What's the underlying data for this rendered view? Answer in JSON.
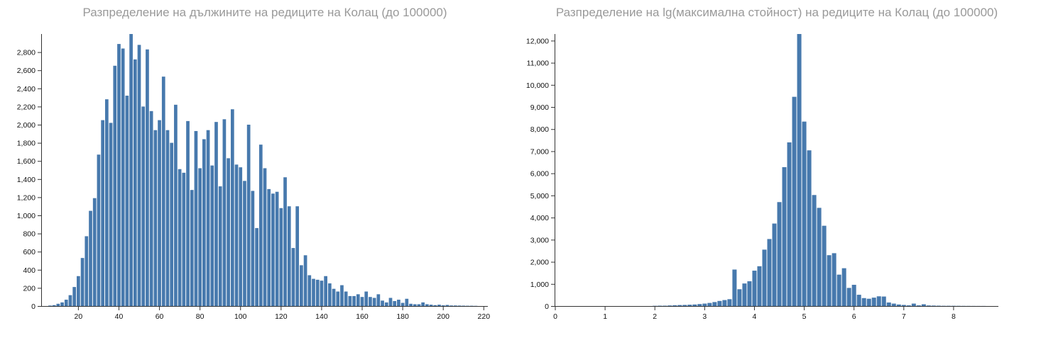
{
  "colors": {
    "bar": "#4779ad",
    "axis": "#333333",
    "title": "#999999"
  },
  "chart_data": [
    {
      "type": "bar",
      "title": "Разпределение на дължините на редиците на Колац (до 100000)",
      "xlabel": "",
      "ylabel": "",
      "xlim": [
        2,
        222
      ],
      "ylim": [
        0,
        3000
      ],
      "grid": false,
      "bin_width": 2,
      "x": [
        6,
        8,
        10,
        12,
        14,
        16,
        18,
        20,
        22,
        24,
        26,
        28,
        30,
        32,
        34,
        36,
        38,
        40,
        42,
        44,
        46,
        48,
        50,
        52,
        54,
        56,
        58,
        60,
        62,
        64,
        66,
        68,
        70,
        72,
        74,
        76,
        78,
        80,
        82,
        84,
        86,
        88,
        90,
        92,
        94,
        96,
        98,
        100,
        102,
        104,
        106,
        108,
        110,
        112,
        114,
        116,
        118,
        120,
        122,
        124,
        126,
        128,
        130,
        132,
        134,
        136,
        138,
        140,
        142,
        144,
        146,
        148,
        150,
        152,
        154,
        156,
        158,
        160,
        162,
        164,
        166,
        168,
        170,
        172,
        174,
        176,
        178,
        180,
        182,
        184,
        186,
        188,
        190,
        192,
        194,
        196,
        198,
        200,
        202,
        204,
        206,
        208,
        210,
        212,
        214,
        216
      ],
      "values": [
        5,
        10,
        25,
        40,
        70,
        120,
        210,
        330,
        530,
        770,
        1050,
        1190,
        1670,
        2050,
        2280,
        2020,
        2650,
        2890,
        2840,
        2320,
        3000,
        2720,
        2880,
        2200,
        2830,
        2150,
        1940,
        2050,
        2530,
        1940,
        1800,
        2220,
        1510,
        1470,
        2040,
        1280,
        1930,
        1520,
        1840,
        1940,
        1550,
        2030,
        1320,
        2060,
        1630,
        2170,
        1560,
        1530,
        1380,
        2000,
        1270,
        860,
        1780,
        1520,
        1290,
        1240,
        1260,
        1080,
        1420,
        1100,
        640,
        1100,
        450,
        560,
        340,
        300,
        290,
        280,
        330,
        250,
        190,
        160,
        230,
        160,
        110,
        110,
        130,
        100,
        160,
        100,
        90,
        130,
        60,
        40,
        90,
        55,
        70,
        35,
        80,
        25,
        20,
        20,
        40,
        20,
        15,
        10,
        15,
        8,
        12,
        6,
        6,
        5,
        4,
        3,
        3,
        2
      ],
      "xticks": [
        20,
        40,
        60,
        80,
        100,
        120,
        140,
        160,
        180,
        200,
        220
      ],
      "xtick_labels": [
        "20",
        "40",
        "60",
        "80",
        "100",
        "120",
        "140",
        "160",
        "180",
        "200",
        "220"
      ],
      "yticks": [
        0,
        200,
        400,
        600,
        800,
        1000,
        1200,
        1400,
        1600,
        1800,
        2000,
        2200,
        2400,
        2600,
        2800
      ],
      "ytick_labels": [
        "0",
        "200",
        "400",
        "600",
        "800",
        "1,000",
        "1,200",
        "1,400",
        "1,600",
        "1,800",
        "2,000",
        "2,200",
        "2,400",
        "2,600",
        "2,800"
      ]
    },
    {
      "type": "bar",
      "title": "Разпределение на lg(максимална стойност) на редиците на Колац (до 100000)",
      "xlabel": "",
      "ylabel": "",
      "xlim": [
        0,
        8.9
      ],
      "ylim": [
        0,
        12300
      ],
      "grid": false,
      "bin_width": 0.1,
      "x": [
        2.0,
        2.1,
        2.2,
        2.3,
        2.4,
        2.5,
        2.6,
        2.7,
        2.8,
        2.9,
        3.0,
        3.1,
        3.2,
        3.3,
        3.4,
        3.5,
        3.6,
        3.7,
        3.8,
        3.9,
        4.0,
        4.1,
        4.2,
        4.3,
        4.4,
        4.5,
        4.6,
        4.7,
        4.8,
        4.9,
        5.0,
        5.1,
        5.2,
        5.3,
        5.4,
        5.5,
        5.6,
        5.7,
        5.8,
        5.9,
        6.0,
        6.1,
        6.2,
        6.3,
        6.4,
        6.5,
        6.6,
        6.7,
        6.8,
        6.9,
        7.0,
        7.1,
        7.2,
        7.3,
        7.4,
        7.5,
        7.6,
        7.7,
        7.8,
        7.9,
        8.0,
        8.1,
        8.2,
        8.3,
        8.4,
        8.5,
        8.6
      ],
      "values": [
        10,
        15,
        15,
        25,
        35,
        45,
        50,
        60,
        70,
        90,
        110,
        140,
        180,
        230,
        270,
        310,
        1650,
        760,
        1020,
        1120,
        1600,
        1800,
        2550,
        3030,
        3730,
        4700,
        6280,
        7400,
        9460,
        12300,
        8340,
        7040,
        5020,
        4440,
        3630,
        2300,
        2390,
        1420,
        1710,
        820,
        960,
        510,
        360,
        330,
        380,
        440,
        430,
        160,
        110,
        70,
        50,
        30,
        110,
        30,
        80,
        25,
        20,
        15,
        10,
        10,
        10,
        8,
        6,
        5,
        4,
        3,
        3
      ],
      "xticks": [
        0,
        1,
        2,
        3,
        4,
        5,
        6,
        7,
        8
      ],
      "xtick_labels": [
        "0",
        "1",
        "2",
        "3",
        "4",
        "5",
        "6",
        "7",
        "8"
      ],
      "yticks": [
        0,
        1000,
        2000,
        3000,
        4000,
        5000,
        6000,
        7000,
        8000,
        9000,
        10000,
        11000,
        12000
      ],
      "ytick_labels": [
        "0",
        "1,000",
        "2,000",
        "3,000",
        "4,000",
        "5,000",
        "6,000",
        "7,000",
        "8,000",
        "9,000",
        "10,000",
        "11,000",
        "12,000"
      ]
    }
  ]
}
